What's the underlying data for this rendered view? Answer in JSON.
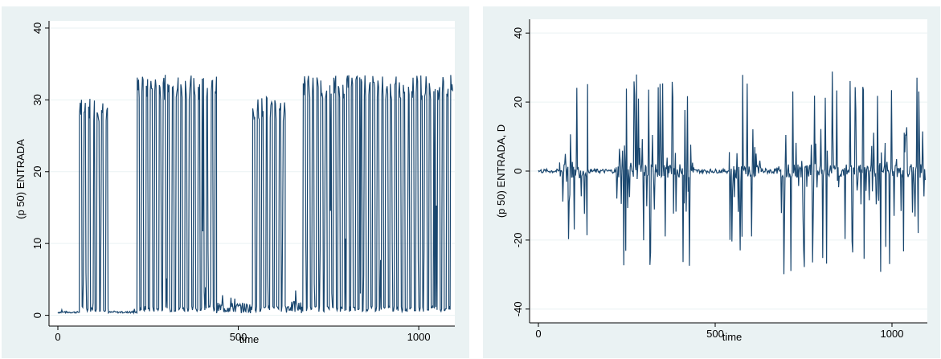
{
  "chart_data": [
    {
      "type": "line",
      "xlabel": "time",
      "ylabel": "(p 50) ENTRADA",
      "xlim": [
        0,
        1100
      ],
      "ylim": [
        -1.5,
        41
      ],
      "xticks": [
        0,
        500,
        1000
      ],
      "yticks": [
        0,
        10,
        20,
        30,
        40
      ],
      "xtick_labels": [
        "0",
        "500",
        "1000"
      ],
      "ytick_labels": [
        "0",
        "10",
        "20",
        "30",
        "40"
      ],
      "grid": true,
      "line_color": "#1a476f",
      "segments": [
        {
          "x": [
            0,
            60
          ],
          "level": "low",
          "y_low": 0.3,
          "y_high": 1
        },
        {
          "x": [
            60,
            140
          ],
          "level": "burst",
          "y_low": 0.5,
          "y_high": 30
        },
        {
          "x": [
            140,
            220
          ],
          "level": "low",
          "y_low": 0.3,
          "y_high": 1
        },
        {
          "x": [
            220,
            440
          ],
          "level": "burst",
          "y_low": 0.5,
          "y_high": 33
        },
        {
          "x": [
            440,
            540
          ],
          "level": "low",
          "y_low": 0.3,
          "y_high": 4.5
        },
        {
          "x": [
            540,
            630
          ],
          "level": "burst",
          "y_low": 0.5,
          "y_high": 30
        },
        {
          "x": [
            630,
            680
          ],
          "level": "low",
          "y_low": 0.3,
          "y_high": 5
        },
        {
          "x": [
            680,
            1095
          ],
          "level": "burst",
          "y_low": 0.5,
          "y_high": 33
        }
      ]
    },
    {
      "type": "line",
      "xlabel": "time",
      "ylabel": "(p 50) ENTRADA, D",
      "xlim": [
        0,
        1100
      ],
      "ylim": [
        -44,
        44
      ],
      "xticks": [
        0,
        500,
        1000
      ],
      "yticks": [
        -40,
        -20,
        0,
        20,
        40
      ],
      "xtick_labels": [
        "0",
        "500",
        "1000"
      ],
      "ytick_labels": [
        "-40",
        "-20",
        "0",
        "20",
        "40"
      ],
      "grid": true,
      "line_color": "#1a476f",
      "segments": [
        {
          "x": [
            0,
            60
          ],
          "level": "flat",
          "amp": 0.6
        },
        {
          "x": [
            60,
            140
          ],
          "level": "burst",
          "amp": 28
        },
        {
          "x": [
            140,
            220
          ],
          "level": "flat",
          "amp": 0.6
        },
        {
          "x": [
            220,
            440
          ],
          "level": "burst",
          "amp": 28
        },
        {
          "x": [
            440,
            540
          ],
          "level": "flat",
          "amp": 0.6
        },
        {
          "x": [
            540,
            630
          ],
          "level": "burst",
          "amp": 28
        },
        {
          "x": [
            630,
            680
          ],
          "level": "flat",
          "amp": 0.8
        },
        {
          "x": [
            680,
            1095
          ],
          "level": "burst",
          "amp": 30
        }
      ]
    }
  ]
}
